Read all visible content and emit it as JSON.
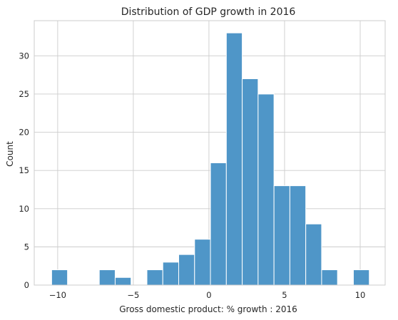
{
  "chart_data": {
    "type": "bar",
    "title": "Distribution of GDP growth in 2016",
    "xlabel": "Gross domestic product: % growth : 2016",
    "ylabel": "Count",
    "bin_width": 1.05,
    "bins": [
      {
        "x0": -10.4,
        "count": 2
      },
      {
        "x0": -9.35,
        "count": 0
      },
      {
        "x0": -8.3,
        "count": 0
      },
      {
        "x0": -7.25,
        "count": 2
      },
      {
        "x0": -6.2,
        "count": 1
      },
      {
        "x0": -5.15,
        "count": 0
      },
      {
        "x0": -4.1,
        "count": 2
      },
      {
        "x0": -3.05,
        "count": 3
      },
      {
        "x0": -2.0,
        "count": 4
      },
      {
        "x0": -0.95,
        "count": 6
      },
      {
        "x0": 0.1,
        "count": 16
      },
      {
        "x0": 1.15,
        "count": 33
      },
      {
        "x0": 2.2,
        "count": 27
      },
      {
        "x0": 3.25,
        "count": 25
      },
      {
        "x0": 4.3,
        "count": 13
      },
      {
        "x0": 5.35,
        "count": 13
      },
      {
        "x0": 6.4,
        "count": 8
      },
      {
        "x0": 7.45,
        "count": 2
      },
      {
        "x0": 8.5,
        "count": 0
      },
      {
        "x0": 9.55,
        "count": 2
      }
    ],
    "xlim": [
      -11.55,
      11.65
    ],
    "ylim": [
      0,
      34.6
    ],
    "xticks": [
      -10,
      -5,
      0,
      5,
      10
    ],
    "xtick_labels": [
      "−10",
      "−5",
      "0",
      "5",
      "10"
    ],
    "yticks": [
      0,
      5,
      10,
      15,
      20,
      25,
      30
    ],
    "ytick_labels": [
      "0",
      "5",
      "10",
      "15",
      "20",
      "25",
      "30"
    ],
    "grid": true,
    "bar_color": "#4f96c8"
  }
}
